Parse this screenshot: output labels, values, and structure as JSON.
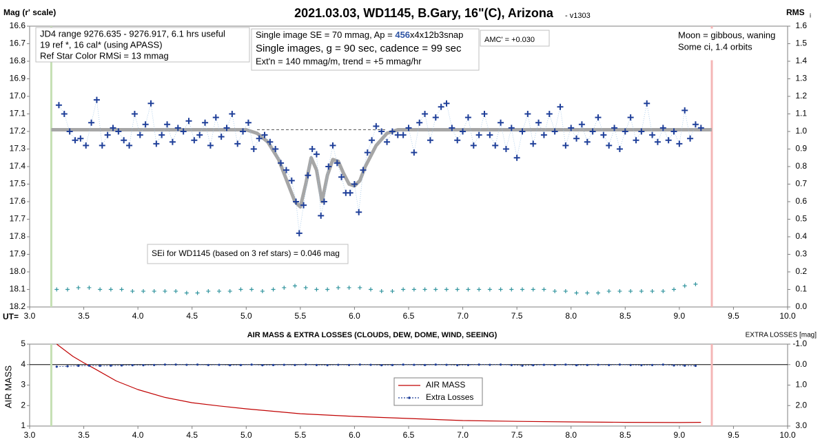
{
  "chart_data": [
    {
      "type": "scatter",
      "title": "2021.03.03, WD1145, B.Gary, 16\"(C), Arizona",
      "version": "- v1303",
      "y_label": "Mag (r' scale)",
      "y2_label": "RMS",
      "y2_label_sub": "i",
      "x_label": "UT=",
      "xlim": [
        3,
        10
      ],
      "xticks": [
        {
          "value": 3,
          "label": "3.0"
        },
        3.5,
        {
          "value": 4,
          "label": "4.0"
        },
        4.5,
        {
          "value": 5,
          "label": "5.0"
        },
        5.5,
        {
          "value": 6,
          "label": "6.0"
        },
        6.5,
        {
          "value": 7,
          "label": "7.0"
        },
        7.5,
        {
          "value": 8,
          "label": "8.0"
        },
        8.5,
        {
          "value": 9,
          "label": "9.0"
        },
        9.5,
        {
          "value": 10,
          "label": "10.0"
        }
      ],
      "ylim": [
        16.6,
        18.2
      ],
      "y_inverted": true,
      "yticks": [
        16.6,
        16.7,
        16.8,
        16.9,
        {
          "value": 17,
          "label": "17.0"
        },
        17.1,
        17.2,
        17.3,
        17.4,
        17.5,
        17.6,
        17.7,
        17.8,
        17.9,
        {
          "value": 18,
          "label": "18.0"
        },
        18.1,
        18.2
      ],
      "y2lim": [
        0,
        1.6
      ],
      "y2ticks": [
        {
          "value": 0,
          "label": "0.0"
        },
        0.1,
        0.2,
        0.3,
        0.4,
        0.5,
        0.6,
        0.7,
        0.8,
        0.9,
        {
          "value": 1,
          "label": "1.0"
        },
        1.1,
        1.2,
        1.3,
        1.4,
        1.5,
        1.6
      ],
      "vlines": [
        {
          "x": 3.2,
          "color": "#c5e0b4"
        },
        {
          "x": 9.3,
          "color": "#f4b6b6"
        }
      ],
      "annotations": [
        {
          "lines": [
            "JD4 range 9276.635 - 9276.917, 6.1 hrs useful",
            "19 ref *, 16 cal* (using APASS)",
            "Ref Star Color RMSi = 13 mmag"
          ]
        },
        {
          "lines": [
            [
              "Single image SE = 70 mmag, Ap = ",
              "456",
              "x4x12b3snap"
            ],
            "Single images, g = 90 sec, cadence = 99 sec",
            "Ext'n = 140 mmag/m, trend = +5 mmag/hr"
          ]
        },
        {
          "lines": [
            "AMC' = +0.030"
          ]
        },
        {
          "lines": [
            "Moon = gibbous, waning",
            "Some ci, 1.4 orbits"
          ]
        },
        {
          "lines": [
            "SEi for WD1145 (based on 3 ref stars) = 0.046 mag"
          ]
        }
      ],
      "series": [
        {
          "style": "line",
          "color": "#a6a6a6",
          "x": [
            3.2,
            5.0,
            5.1,
            5.2,
            5.3,
            5.4,
            5.45,
            5.5,
            5.55,
            5.6,
            5.65,
            5.7,
            5.75,
            5.8,
            5.85,
            5.9,
            5.95,
            6.0,
            6.05,
            6.1,
            6.2,
            6.3,
            6.4,
            9.3
          ],
          "values": [
            17.19,
            17.19,
            17.21,
            17.26,
            17.36,
            17.52,
            17.6,
            17.63,
            17.5,
            17.35,
            17.42,
            17.6,
            17.45,
            17.36,
            17.37,
            17.44,
            17.5,
            17.51,
            17.48,
            17.4,
            17.28,
            17.21,
            17.19,
            17.19
          ]
        },
        {
          "style": "dashed",
          "color": "#595959",
          "x": [
            5.1,
            6.3
          ],
          "values": [
            17.19,
            17.19
          ]
        },
        {
          "style": "plus",
          "color": "#1f3f99",
          "connect_color": "#9dc3e6",
          "x": [
            3.27,
            3.32,
            3.37,
            3.42,
            3.47,
            3.52,
            3.57,
            3.62,
            3.67,
            3.72,
            3.77,
            3.82,
            3.87,
            3.92,
            3.97,
            4.02,
            4.07,
            4.12,
            4.17,
            4.22,
            4.27,
            4.32,
            4.37,
            4.42,
            4.47,
            4.52,
            4.57,
            4.62,
            4.67,
            4.72,
            4.77,
            4.82,
            4.87,
            4.92,
            4.97,
            5.02,
            5.07,
            5.12,
            5.17,
            5.22,
            5.27,
            5.32,
            5.37,
            5.42,
            5.46,
            5.49,
            5.53,
            5.57,
            5.61,
            5.65,
            5.69,
            5.72,
            5.76,
            5.8,
            5.84,
            5.88,
            5.92,
            5.96,
            6.0,
            6.04,
            6.08,
            6.12,
            6.16,
            6.2,
            6.25,
            6.3,
            6.35,
            6.4,
            6.45,
            6.5,
            6.55,
            6.6,
            6.65,
            6.7,
            6.75,
            6.8,
            6.85,
            6.9,
            6.95,
            7.0,
            7.05,
            7.1,
            7.15,
            7.2,
            7.25,
            7.3,
            7.35,
            7.4,
            7.45,
            7.5,
            7.55,
            7.6,
            7.65,
            7.7,
            7.75,
            7.8,
            7.85,
            7.9,
            7.95,
            8.0,
            8.05,
            8.1,
            8.15,
            8.2,
            8.25,
            8.3,
            8.35,
            8.4,
            8.45,
            8.5,
            8.55,
            8.6,
            8.65,
            8.7,
            8.75,
            8.8,
            8.85,
            8.9,
            8.95,
            9.0,
            9.05,
            9.1,
            9.15,
            9.2
          ],
          "values": [
            17.05,
            17.1,
            17.2,
            17.25,
            17.24,
            17.28,
            17.15,
            17.02,
            17.28,
            17.22,
            17.18,
            17.2,
            17.25,
            17.28,
            17.1,
            17.22,
            17.16,
            17.04,
            17.27,
            17.22,
            17.16,
            17.26,
            17.18,
            17.2,
            17.14,
            17.25,
            17.22,
            17.15,
            17.28,
            17.12,
            17.23,
            17.18,
            17.1,
            17.27,
            17.2,
            17.15,
            17.3,
            17.24,
            17.22,
            17.26,
            17.3,
            17.38,
            17.42,
            17.48,
            17.6,
            17.78,
            17.62,
            17.45,
            17.3,
            17.33,
            17.68,
            17.6,
            17.4,
            17.28,
            17.38,
            17.46,
            17.55,
            17.55,
            17.5,
            17.66,
            17.42,
            17.32,
            17.25,
            17.17,
            17.2,
            17.26,
            17.2,
            17.22,
            17.22,
            17.18,
            17.32,
            17.15,
            17.1,
            17.25,
            17.12,
            17.06,
            17.04,
            17.18,
            17.25,
            17.2,
            17.12,
            17.28,
            17.22,
            17.1,
            17.22,
            17.28,
            17.15,
            17.3,
            17.18,
            17.35,
            17.2,
            17.1,
            17.27,
            17.15,
            17.22,
            17.1,
            17.2,
            17.06,
            17.28,
            17.18,
            17.24,
            17.16,
            17.26,
            17.2,
            17.12,
            17.22,
            17.28,
            17.18,
            17.3,
            17.2,
            17.12,
            17.25,
            17.2,
            17.04,
            17.22,
            17.26,
            17.18,
            17.25,
            17.2,
            17.27,
            17.08,
            17.24,
            17.16,
            17.18
          ]
        },
        {
          "style": "plus-small",
          "color": "#31949e",
          "axis": "y2",
          "x": [
            3.25,
            3.35,
            3.45,
            3.55,
            3.65,
            3.75,
            3.85,
            3.95,
            4.05,
            4.15,
            4.25,
            4.35,
            4.45,
            4.55,
            4.65,
            4.75,
            4.85,
            4.95,
            5.05,
            5.15,
            5.25,
            5.35,
            5.45,
            5.55,
            5.65,
            5.75,
            5.85,
            5.95,
            6.05,
            6.15,
            6.25,
            6.35,
            6.45,
            6.55,
            6.65,
            6.75,
            6.85,
            6.95,
            7.05,
            7.15,
            7.25,
            7.35,
            7.45,
            7.55,
            7.65,
            7.75,
            7.85,
            7.95,
            8.05,
            8.15,
            8.25,
            8.35,
            8.45,
            8.55,
            8.65,
            8.75,
            8.85,
            8.95,
            9.05,
            9.15
          ],
          "values": [
            0.1,
            0.1,
            0.11,
            0.11,
            0.1,
            0.1,
            0.1,
            0.09,
            0.09,
            0.09,
            0.09,
            0.09,
            0.08,
            0.08,
            0.09,
            0.09,
            0.09,
            0.1,
            0.1,
            0.09,
            0.1,
            0.11,
            0.12,
            0.11,
            0.1,
            0.1,
            0.11,
            0.11,
            0.11,
            0.1,
            0.09,
            0.09,
            0.1,
            0.1,
            0.1,
            0.1,
            0.1,
            0.1,
            0.1,
            0.1,
            0.1,
            0.1,
            0.1,
            0.1,
            0.1,
            0.1,
            0.09,
            0.09,
            0.08,
            0.08,
            0.08,
            0.09,
            0.09,
            0.09,
            0.09,
            0.09,
            0.09,
            0.1,
            0.12,
            0.13
          ]
        }
      ]
    },
    {
      "type": "scatter",
      "title": "AIR MASS & EXTRA LOSSES (CLOUDS, DEW, DOME, WIND, SEEING)",
      "y_label": "AIR MASS",
      "y2_label": "EXTRA LOSSES [mag]",
      "xlim": [
        3,
        10
      ],
      "xticks": [
        {
          "value": 3,
          "label": "3.0"
        },
        3.5,
        {
          "value": 4,
          "label": "4.0"
        },
        4.5,
        {
          "value": 5,
          "label": "5.0"
        },
        5.5,
        {
          "value": 6,
          "label": "6.0"
        },
        6.5,
        {
          "value": 7,
          "label": "7.0"
        },
        7.5,
        {
          "value": 8,
          "label": "8.0"
        },
        8.5,
        {
          "value": 9,
          "label": "9.0"
        },
        9.5,
        {
          "value": 10,
          "label": "10.0"
        }
      ],
      "ylim": [
        1,
        5
      ],
      "yticks": [
        1,
        2,
        3,
        4,
        5
      ],
      "y2lim": [
        -1,
        3
      ],
      "y2_inverted": true,
      "y2ticks": [
        {
          "value": -1,
          "label": "-1.0"
        },
        {
          "value": 0,
          "label": "0.0"
        },
        {
          "value": 1,
          "label": "1.0"
        },
        {
          "value": 2,
          "label": "2.0"
        },
        {
          "value": 3,
          "label": "3.0"
        }
      ],
      "y2_zero_line": true,
      "legend": "center",
      "vlines": [
        {
          "x": 3.2,
          "color": "#c5e0b4"
        },
        {
          "x": 9.3,
          "color": "#f4b6b6"
        }
      ],
      "series": [
        {
          "name": "AIR MASS",
          "style": "line",
          "color": "#c00000",
          "x": [
            3.25,
            3.4,
            3.5,
            3.6,
            3.8,
            4.0,
            4.25,
            4.5,
            4.75,
            5.0,
            5.5,
            6.0,
            6.5,
            7.0,
            7.5,
            8.0,
            8.5,
            9.0,
            9.2
          ],
          "values": [
            5.0,
            4.4,
            4.09,
            3.8,
            3.2,
            2.78,
            2.4,
            2.14,
            1.98,
            1.84,
            1.6,
            1.47,
            1.37,
            1.27,
            1.23,
            1.2,
            1.18,
            1.17,
            1.18
          ]
        },
        {
          "name": "Extra Losses",
          "style": "dots",
          "color": "#1f3f99",
          "axis": "y2",
          "x": [
            3.25,
            3.35,
            3.45,
            3.55,
            3.65,
            3.75,
            3.85,
            3.95,
            4.05,
            4.15,
            4.25,
            4.35,
            4.45,
            4.55,
            4.65,
            4.75,
            4.85,
            4.95,
            5.05,
            5.15,
            5.25,
            5.35,
            5.45,
            5.55,
            5.65,
            5.75,
            5.85,
            5.95,
            6.05,
            6.15,
            6.25,
            6.35,
            6.45,
            6.55,
            6.65,
            6.75,
            6.85,
            6.95,
            7.05,
            7.15,
            7.25,
            7.35,
            7.45,
            7.55,
            7.65,
            7.75,
            7.85,
            7.95,
            8.05,
            8.15,
            8.25,
            8.35,
            8.45,
            8.55,
            8.65,
            8.75,
            8.85,
            8.95,
            9.05,
            9.15
          ],
          "values": [
            0.1,
            0.08,
            0.06,
            0.05,
            0.06,
            0.05,
            0.04,
            0.03,
            0.03,
            0.02,
            0.0,
            0.0,
            0.01,
            0.0,
            0.02,
            0.01,
            0.03,
            0.02,
            0.0,
            0.03,
            0.02,
            0.01,
            0.02,
            0.0,
            0.02,
            0.03,
            0.01,
            0.02,
            0.0,
            0.01,
            0.03,
            0.02,
            0.0,
            0.01,
            0.02,
            0.0,
            0.01,
            0.03,
            0.02,
            0.0,
            0.01,
            0.0,
            0.02,
            0.05,
            0.03,
            0.01,
            0.02,
            0.0,
            0.03,
            0.02,
            0.01,
            0.02,
            0.0,
            0.02,
            0.03,
            0.02,
            0.0,
            0.04,
            0.05,
            0.06
          ]
        }
      ]
    }
  ]
}
